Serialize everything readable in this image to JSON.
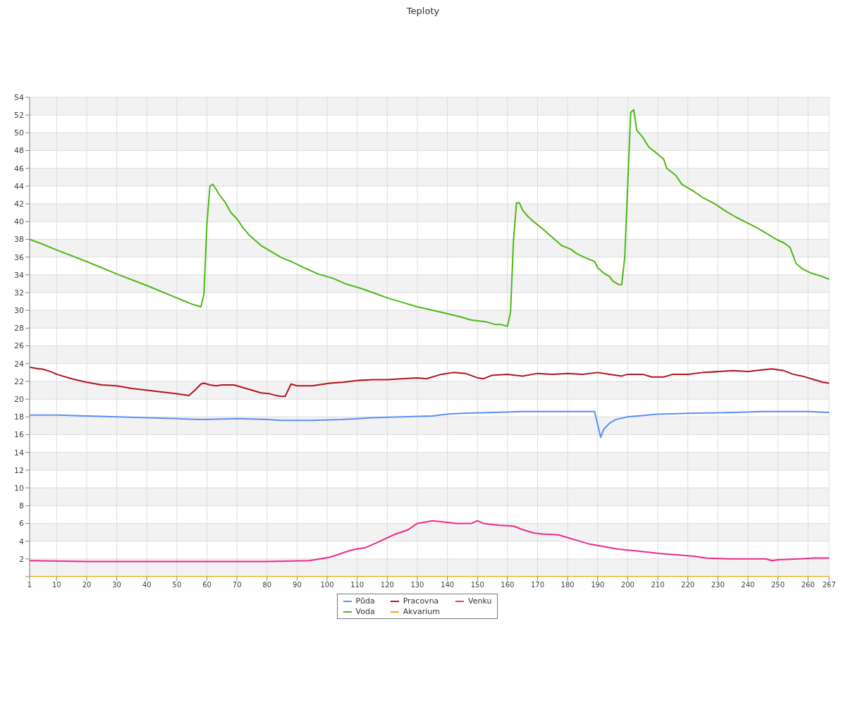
{
  "chart_data": {
    "type": "line",
    "title": "Teploty",
    "xlim": [
      1,
      267
    ],
    "xticks": [
      1,
      10,
      20,
      30,
      40,
      50,
      60,
      70,
      80,
      90,
      100,
      110,
      120,
      130,
      140,
      150,
      160,
      170,
      180,
      190,
      200,
      210,
      220,
      230,
      240,
      250,
      260,
      267
    ],
    "ylim": [
      0,
      54
    ],
    "yticks": [
      {
        "value": 0,
        "label": null
      },
      2,
      4,
      6,
      8,
      10,
      12,
      14,
      16,
      18,
      20,
      22,
      24,
      26,
      28,
      30,
      32,
      34,
      36,
      38,
      40,
      42,
      44,
      46,
      48,
      50,
      52,
      54
    ],
    "grid": true,
    "legend": "bottom",
    "marker": "none",
    "line_style": "solid",
    "series": [
      {
        "name": "Půda",
        "color": "#5b8ff9",
        "x": [
          1,
          10,
          20,
          30,
          40,
          50,
          57,
          60,
          70,
          80,
          85,
          95,
          105,
          115,
          125,
          135,
          140,
          145,
          155,
          165,
          189,
          191,
          192,
          194,
          196,
          200,
          210,
          220,
          235,
          245,
          260,
          267
        ],
        "values": [
          18.2,
          18.2,
          18.1,
          18.0,
          17.9,
          17.8,
          17.7,
          17.7,
          17.8,
          17.7,
          17.6,
          17.6,
          17.7,
          17.9,
          18.0,
          18.1,
          18.3,
          18.4,
          18.5,
          18.6,
          18.6,
          15.7,
          16.6,
          17.3,
          17.7,
          18.0,
          18.3,
          18.4,
          18.5,
          18.6,
          18.6,
          18.5
        ]
      },
      {
        "name": "Voda",
        "color": "#4cb814",
        "x": [
          1,
          5,
          10,
          20,
          30,
          40,
          50,
          55,
          57,
          58,
          59,
          60,
          61,
          62,
          64,
          66,
          68,
          70,
          72,
          74,
          76,
          78,
          82,
          85,
          88,
          93,
          97,
          102,
          106,
          111,
          116,
          120,
          125,
          130,
          134,
          139,
          144,
          148,
          153,
          156,
          158,
          160,
          161,
          162,
          163,
          164,
          165,
          167,
          169,
          172,
          174,
          176,
          178,
          181,
          183,
          186,
          189,
          190,
          192,
          194,
          195,
          197,
          198,
          199,
          200,
          201,
          202,
          203,
          205,
          207,
          210,
          212,
          213,
          216,
          218,
          222,
          225,
          229,
          232,
          236,
          239,
          243,
          246,
          250,
          252,
          254,
          255,
          256,
          258,
          261,
          264,
          267
        ],
        "values": [
          38.0,
          37.5,
          36.8,
          35.5,
          34.1,
          32.8,
          31.4,
          30.7,
          30.5,
          30.4,
          31.8,
          39.8,
          44.0,
          44.2,
          43.1,
          42.2,
          41.0,
          40.3,
          39.3,
          38.5,
          37.9,
          37.3,
          36.5,
          35.9,
          35.5,
          34.7,
          34.1,
          33.6,
          33.0,
          32.5,
          31.9,
          31.4,
          30.9,
          30.4,
          30.1,
          29.7,
          29.3,
          28.9,
          28.7,
          28.4,
          28.4,
          28.2,
          29.8,
          37.9,
          42.1,
          42.1,
          41.3,
          40.5,
          39.9,
          39.1,
          38.5,
          37.9,
          37.3,
          36.9,
          36.4,
          35.9,
          35.5,
          34.8,
          34.2,
          33.8,
          33.3,
          32.9,
          32.9,
          35.9,
          44.1,
          52.3,
          52.6,
          50.3,
          49.5,
          48.4,
          47.6,
          47.0,
          46.0,
          45.2,
          44.2,
          43.4,
          42.7,
          42.0,
          41.3,
          40.5,
          40.0,
          39.3,
          38.7,
          37.9,
          37.6,
          37.1,
          36.2,
          35.3,
          34.7,
          34.2,
          33.9,
          33.5
        ]
      },
      {
        "name": "Pracovna",
        "color": "#b5121b",
        "x": [
          1,
          4,
          5,
          8,
          10,
          15,
          20,
          25,
          30,
          35,
          40,
          45,
          50,
          54,
          56,
          58,
          59,
          61,
          63,
          65,
          67,
          69,
          72,
          75,
          78,
          81,
          83,
          85,
          86,
          87,
          88,
          90,
          95,
          101,
          105,
          110,
          115,
          120,
          125,
          130,
          133,
          138,
          142,
          146,
          150,
          152,
          155,
          160,
          165,
          170,
          175,
          180,
          185,
          190,
          194,
          198,
          200,
          205,
          208,
          212,
          215,
          220,
          225,
          230,
          235,
          240,
          245,
          248,
          252,
          255,
          258,
          262,
          265,
          267
        ],
        "values": [
          23.6,
          23.4,
          23.4,
          23.1,
          22.8,
          22.3,
          21.9,
          21.6,
          21.5,
          21.2,
          21.0,
          20.8,
          20.6,
          20.4,
          21.0,
          21.7,
          21.8,
          21.6,
          21.5,
          21.6,
          21.6,
          21.6,
          21.3,
          21.0,
          20.7,
          20.6,
          20.4,
          20.3,
          20.3,
          21.0,
          21.7,
          21.5,
          21.5,
          21.8,
          21.9,
          22.1,
          22.2,
          22.2,
          22.3,
          22.4,
          22.3,
          22.8,
          23.0,
          22.9,
          22.4,
          22.3,
          22.7,
          22.8,
          22.6,
          22.9,
          22.8,
          22.9,
          22.8,
          23.0,
          22.8,
          22.6,
          22.8,
          22.8,
          22.5,
          22.5,
          22.8,
          22.8,
          23.0,
          23.1,
          23.2,
          23.1,
          23.3,
          23.4,
          23.2,
          22.8,
          22.6,
          22.2,
          21.9,
          21.8
        ]
      },
      {
        "name": "Akvarium",
        "color": "#f5a300",
        "x": [
          1,
          267
        ],
        "values": [
          0,
          0
        ]
      },
      {
        "name": "Venku",
        "color": "#f0288c",
        "x": [
          1,
          20,
          40,
          60,
          80,
          94,
          101,
          108,
          113,
          117,
          122,
          127,
          130,
          135,
          138,
          143,
          148,
          150,
          152,
          157,
          162,
          165,
          169,
          172,
          177,
          183,
          187,
          192,
          197,
          203,
          211,
          215,
          222,
          226,
          234,
          246,
          248,
          250,
          257,
          262,
          267
        ],
        "values": [
          1.8,
          1.7,
          1.7,
          1.7,
          1.7,
          1.8,
          2.2,
          3.0,
          3.3,
          3.9,
          4.7,
          5.3,
          6.0,
          6.3,
          6.2,
          6.0,
          6.0,
          6.3,
          6.0,
          5.8,
          5.7,
          5.3,
          4.9,
          4.8,
          4.7,
          4.1,
          3.7,
          3.4,
          3.1,
          2.9,
          2.6,
          2.5,
          2.3,
          2.1,
          2.0,
          2.0,
          1.8,
          1.9,
          2.0,
          2.1,
          2.1
        ]
      }
    ]
  }
}
